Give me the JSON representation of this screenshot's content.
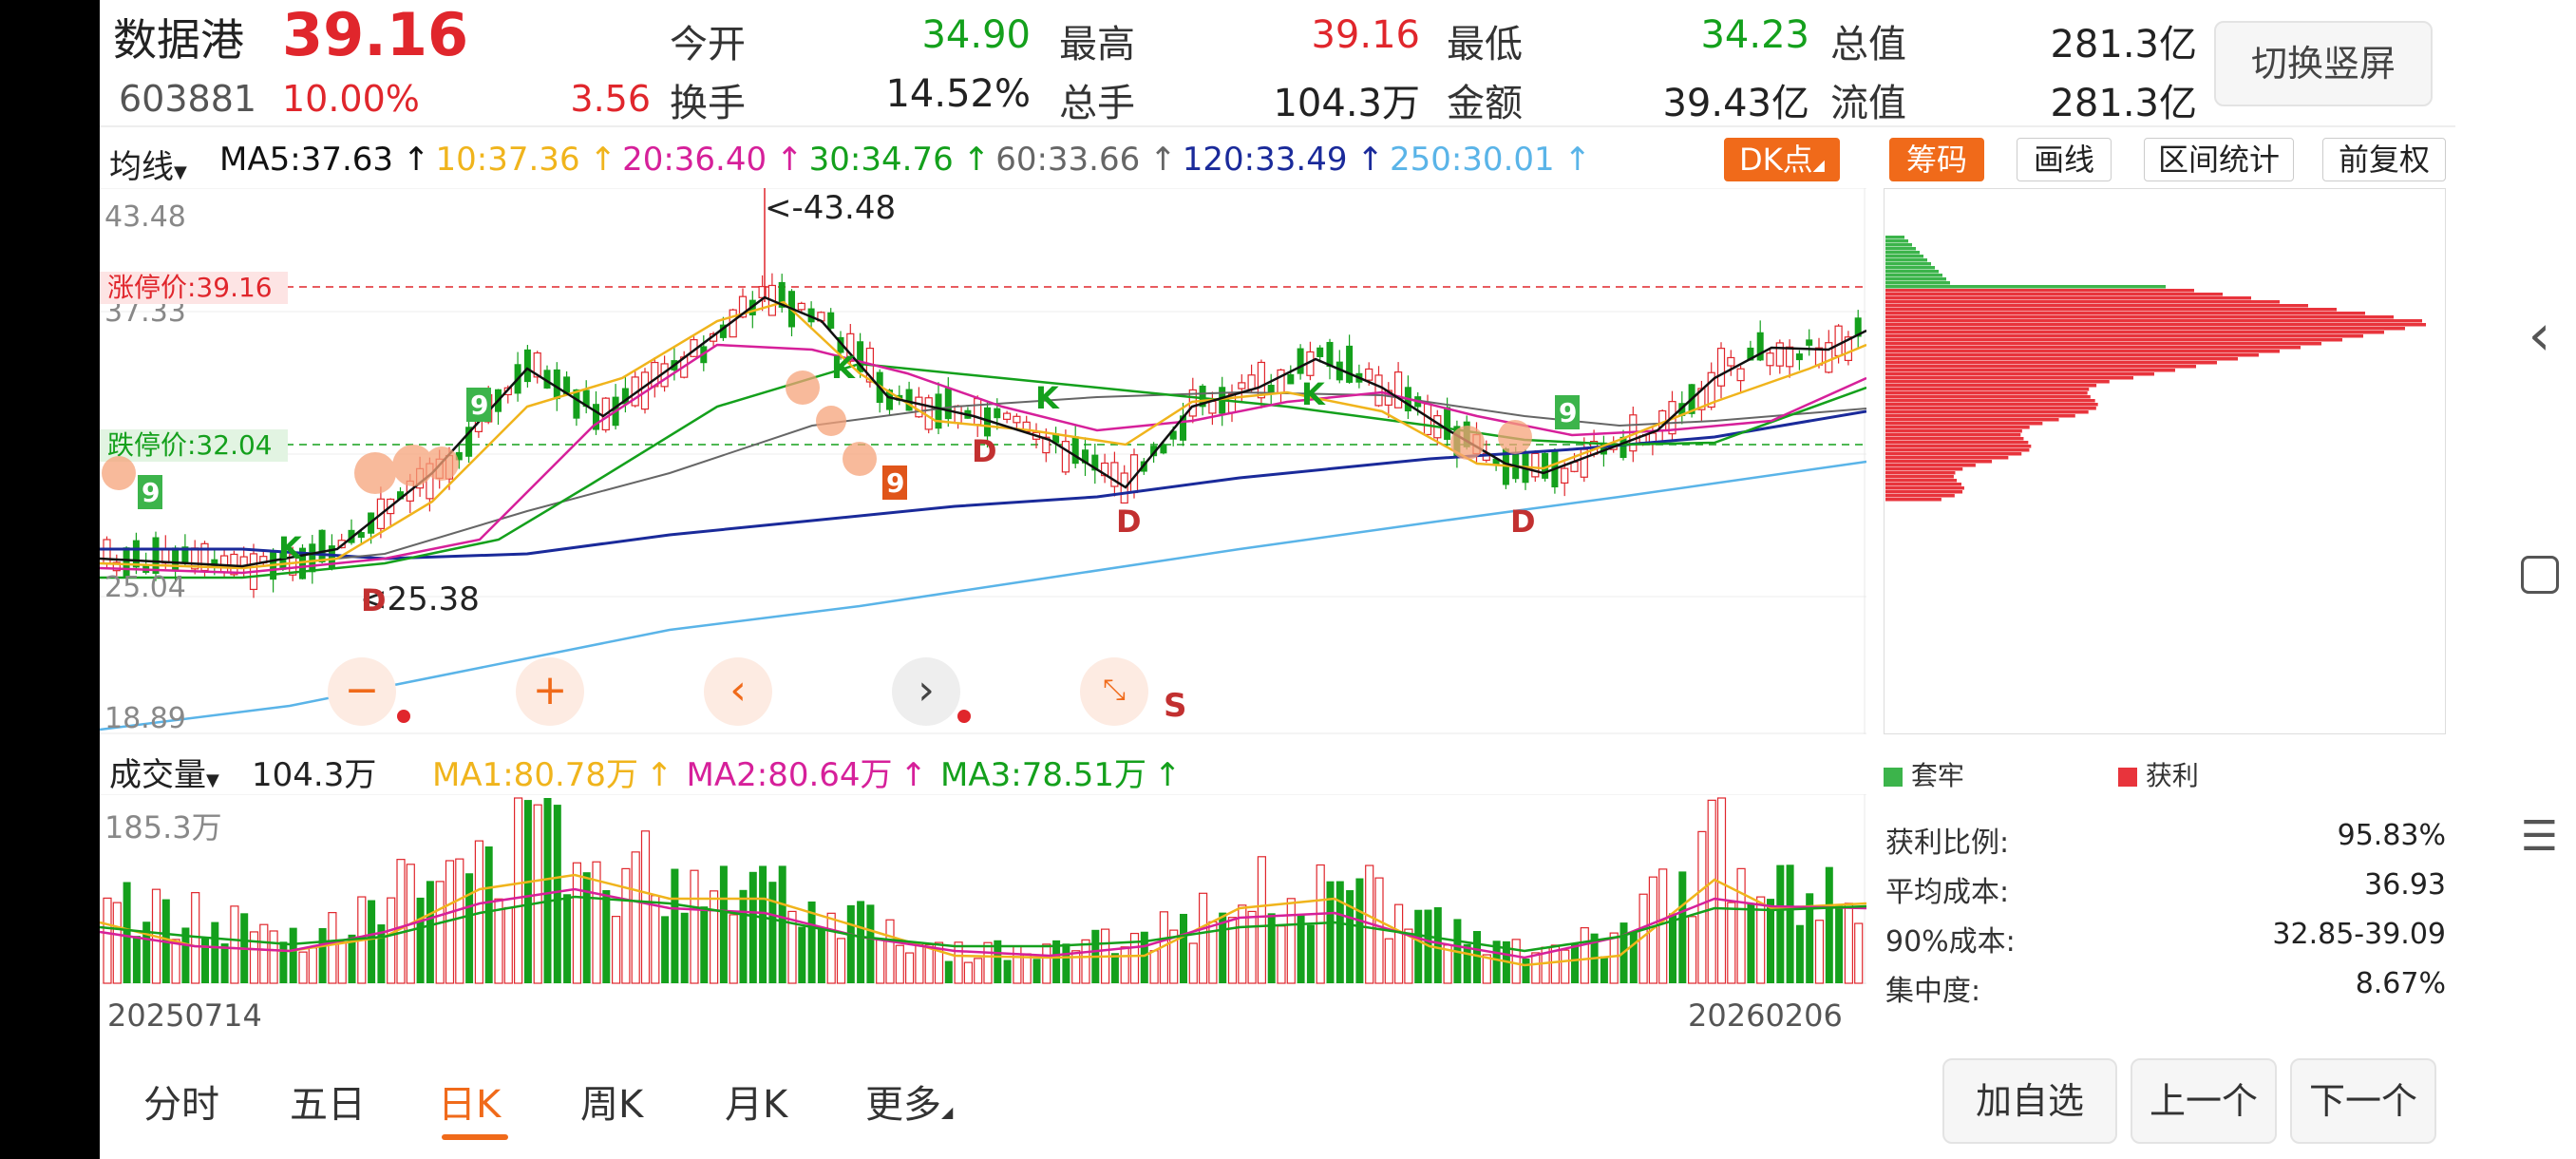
{
  "header": {
    "name": "数据港",
    "price": "39.16",
    "code": "603881",
    "change_pct": "10.00%",
    "change_abs": "3.56",
    "fields": [
      {
        "label": "今开",
        "value": "34.90",
        "color": "#14a01c"
      },
      {
        "label": "最高",
        "value": "39.16",
        "color": "#e0262c"
      },
      {
        "label": "最低",
        "value": "34.23",
        "color": "#14a01c"
      },
      {
        "label": "总值",
        "value": "281.3亿",
        "color": "#222222"
      },
      {
        "label": "换手",
        "value": "14.52%",
        "color": "#222222"
      },
      {
        "label": "总手",
        "value": "104.3万",
        "color": "#222222"
      },
      {
        "label": "金额",
        "value": "39.43亿",
        "color": "#222222"
      },
      {
        "label": "流值",
        "value": "281.3亿",
        "color": "#222222"
      }
    ],
    "switch_label": "切换竖屏"
  },
  "ma_bar": {
    "selector": "均线",
    "items": [
      {
        "text": "MA5:37.63",
        "color": "#111111"
      },
      {
        "text": "10:37.36",
        "color": "#f0b41c"
      },
      {
        "text": "20:36.40",
        "color": "#d6209a"
      },
      {
        "text": "30:34.76",
        "color": "#14a01c"
      },
      {
        "text": "60:33.66",
        "color": "#666666"
      },
      {
        "text": "120:33.49",
        "color": "#1a2a9a"
      },
      {
        "text": "250:30.01",
        "color": "#5ab4e8"
      }
    ],
    "tools": [
      "DK点",
      "筹码",
      "画线",
      "区间统计",
      "前复权"
    ]
  },
  "kline": {
    "y_labels": [
      "43.48",
      "37.33",
      "25.04",
      "18.89"
    ],
    "high_note": "<-43.48",
    "low_note": "<25.38",
    "limit_up": "涨停价:39.16",
    "limit_down": "跌停价:32.04",
    "signal_s": "S",
    "markers": [
      "9",
      "9",
      "9",
      "9",
      "K",
      "K",
      "K",
      "K",
      "D",
      "D",
      "D",
      "D"
    ]
  },
  "chip": {
    "legend_trapped": "套牢",
    "legend_profit": "获利",
    "stats": [
      {
        "label": "获利比例:",
        "value": "95.83%"
      },
      {
        "label": "平均成本:",
        "value": "36.93"
      },
      {
        "label": "90%成本:",
        "value": "32.85-39.09"
      },
      {
        "label": "集中度:",
        "value": "8.67%"
      }
    ],
    "colors": {
      "profit": "#e8343c",
      "trapped": "#3cb44b"
    }
  },
  "volume": {
    "selector": "成交量",
    "total": "104.3万",
    "ma": [
      {
        "text": "MA1:80.78万",
        "color": "#f0b41c"
      },
      {
        "text": "MA2:80.64万",
        "color": "#d6209a"
      },
      {
        "text": "MA3:78.51万",
        "color": "#14a01c"
      }
    ],
    "max_label": "185.3万",
    "date_start": "20250714",
    "date_end": "20260206"
  },
  "tabs": [
    "分时",
    "五日",
    "日K",
    "周K",
    "月K",
    "更多"
  ],
  "active_tab": "日K",
  "buttons": {
    "add": "加自选",
    "prev": "上一个",
    "next": "下一个"
  },
  "controls": [
    "zoom-out-icon",
    "zoom-in-icon",
    "scroll-left-icon",
    "scroll-right-icon",
    "collapse-icon"
  ]
}
